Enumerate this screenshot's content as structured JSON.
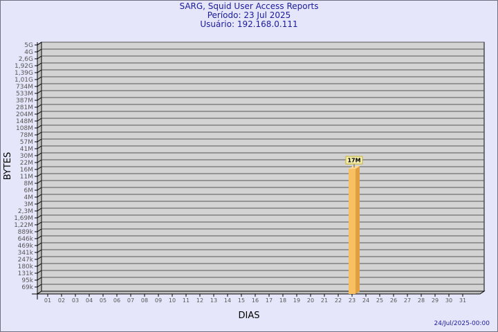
{
  "chart_data": {
    "type": "bar",
    "title": "SARG, Squid User Access Reports",
    "subtitle": [
      "Período: 23 Jul 2025",
      "Usuário: 192.168.0.111"
    ],
    "xlabel": "DIAS",
    "ylabel": "BYTES",
    "y_scale": "log",
    "grid": true,
    "y_tick_labels": [
      "5G",
      "4G",
      "2,6G",
      "1,92G",
      "1,39G",
      "1,01G",
      "734M",
      "533M",
      "387M",
      "281M",
      "204M",
      "148M",
      "108M",
      "78M",
      "57M",
      "41M",
      "30M",
      "22M",
      "16M",
      "11M",
      "8M",
      "6M",
      "4M",
      "3M",
      "2,3M",
      "1,69M",
      "1,22M",
      "889k",
      "646k",
      "469k",
      "341k",
      "247k",
      "180k",
      "131k",
      "95k",
      "69k"
    ],
    "categories": [
      "01",
      "02",
      "03",
      "04",
      "05",
      "06",
      "07",
      "08",
      "09",
      "10",
      "11",
      "12",
      "13",
      "14",
      "15",
      "16",
      "17",
      "18",
      "19",
      "20",
      "21",
      "22",
      "23",
      "24",
      "25",
      "26",
      "27",
      "28",
      "29",
      "30",
      "31"
    ],
    "series": [
      {
        "day": "23",
        "value": 17000000,
        "data_label": "17M"
      }
    ],
    "bar_color": "#f8c060",
    "footer": "24/Jul/2025-00:00"
  }
}
